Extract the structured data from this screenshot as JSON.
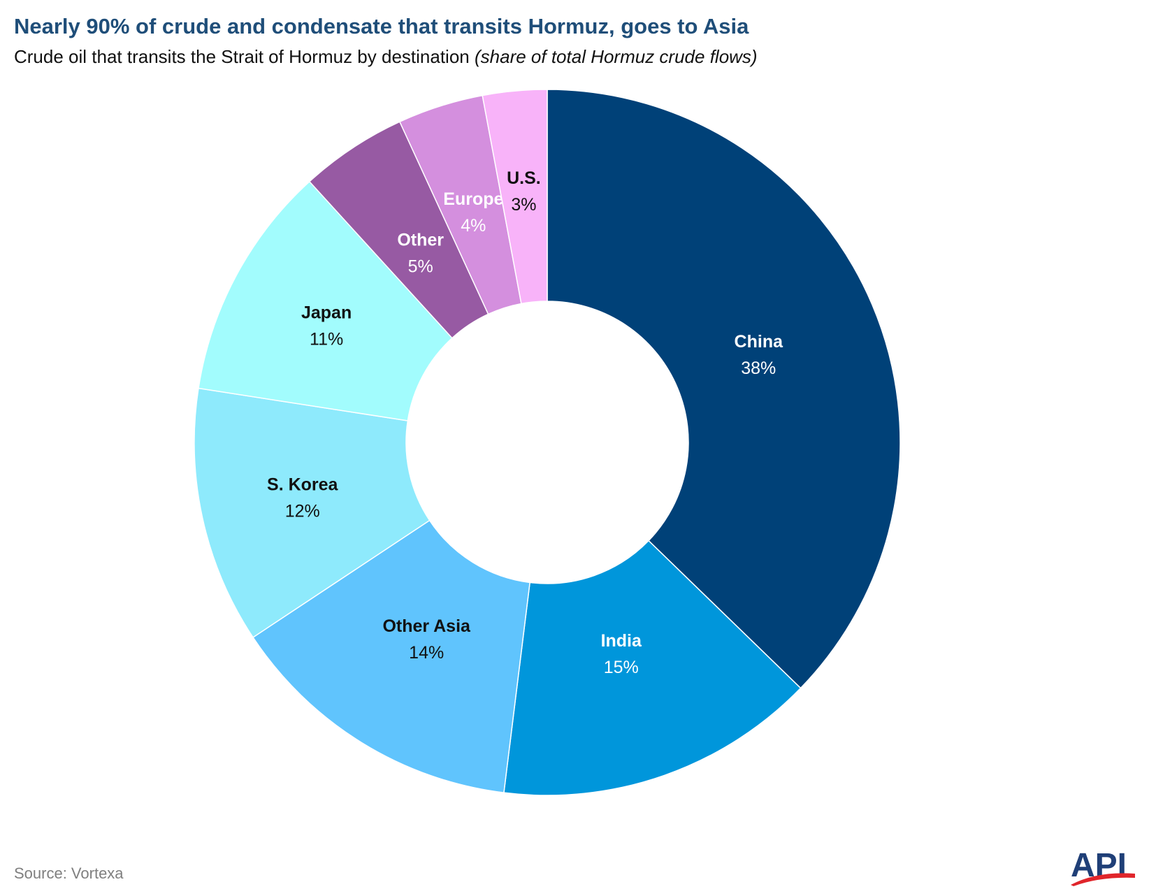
{
  "header": {
    "title": "Nearly 90% of crude and condensate that transits Hormuz, goes to Asia",
    "subtitle": "Crude oil that transits the Strait of Hormuz by destination",
    "subtitle_note": "(share of total Hormuz crude flows)"
  },
  "footer": {
    "source": "Source: Vortexa",
    "logo_text": "API"
  },
  "chart_data": {
    "type": "pie",
    "donut": true,
    "categories": [
      "China",
      "India",
      "Other Asia",
      "S. Korea",
      "Japan",
      "Other",
      "Europe",
      "U.S."
    ],
    "values": [
      38,
      15,
      14,
      12,
      11,
      5,
      4,
      3
    ],
    "labels": [
      "38%",
      "15%",
      "14%",
      "12%",
      "11%",
      "5%",
      "4%",
      "3%"
    ],
    "colors": [
      "#004178",
      "#0096db",
      "#60c4fd",
      "#8eeafc",
      "#a2fcfd",
      "#975aa3",
      "#d48fde",
      "#f8b3f9"
    ],
    "label_colors": [
      "#ffffff",
      "#ffffff",
      "#111111",
      "#111111",
      "#111111",
      "#ffffff",
      "#ffffff",
      "#111111"
    ],
    "legend": "none"
  }
}
